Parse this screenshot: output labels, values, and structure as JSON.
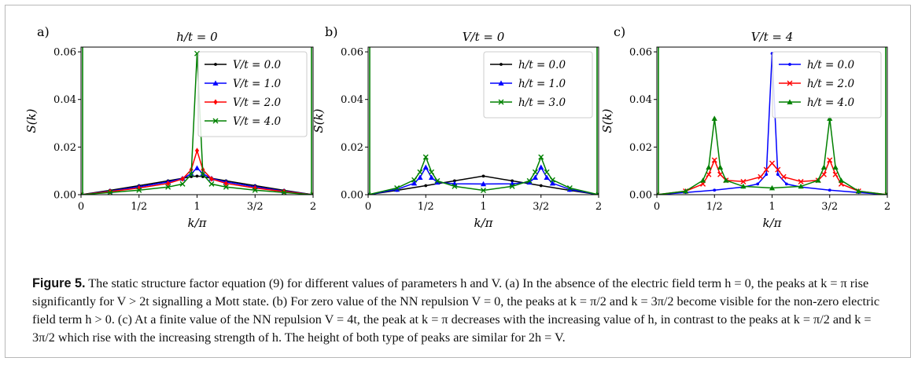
{
  "colors": {
    "black": "#000000",
    "blue": "#0000ff",
    "red": "#ff0000",
    "green": "#008000"
  },
  "chart_data": [
    {
      "type": "line",
      "panel_label": "a)",
      "title": "h/t = 0",
      "xlabel": "k/π",
      "ylabel": "S(k)",
      "xlim": [
        0,
        2
      ],
      "ylim": [
        0,
        0.062
      ],
      "xticks": [
        0,
        0.5,
        1,
        1.5,
        2
      ],
      "xticklabels": [
        "0",
        "1/2",
        "1",
        "3/2",
        "2"
      ],
      "yticks": [
        0,
        0.02,
        0.04,
        0.06
      ],
      "yticklabels": [
        "0.00",
        "0.02",
        "0.04",
        "0.06"
      ],
      "legend_position": "top-right",
      "series": [
        {
          "name": "V/t = 0.0",
          "color": "#000000",
          "marker": "dot",
          "x": [
            0,
            0.25,
            0.5,
            0.75,
            0.875,
            0.95,
            1.0,
            1.05,
            1.125,
            1.25,
            1.5,
            1.75,
            2.0
          ],
          "y": [
            0.0,
            0.0018,
            0.0038,
            0.0058,
            0.0069,
            0.0076,
            0.0078,
            0.0076,
            0.0069,
            0.0058,
            0.0038,
            0.0018,
            0.0
          ]
        },
        {
          "name": "V/t = 1.0",
          "color": "#0000ff",
          "marker": "triangle",
          "x": [
            0,
            0.25,
            0.5,
            0.75,
            0.875,
            0.95,
            1.0,
            1.05,
            1.125,
            1.25,
            1.5,
            1.75,
            2.0
          ],
          "y": [
            0.0,
            0.0015,
            0.0033,
            0.0053,
            0.0068,
            0.0088,
            0.0112,
            0.0088,
            0.0068,
            0.0053,
            0.0033,
            0.0015,
            0.0
          ]
        },
        {
          "name": "V/t = 2.0",
          "color": "#ff0000",
          "marker": "diamond",
          "x": [
            0,
            0.25,
            0.5,
            0.75,
            0.875,
            0.95,
            1.0,
            1.05,
            1.125,
            1.25,
            1.5,
            1.75,
            2.0
          ],
          "y": [
            0.0,
            0.0013,
            0.0028,
            0.0047,
            0.0066,
            0.0105,
            0.0185,
            0.0105,
            0.0066,
            0.0047,
            0.0028,
            0.0013,
            0.0
          ]
        },
        {
          "name": "V/t = 4.0",
          "color": "#008000",
          "marker": "x",
          "x": [
            0,
            0.25,
            0.5,
            0.75,
            0.875,
            0.95,
            1.0,
            1.05,
            1.125,
            1.25,
            1.5,
            1.75,
            2.0
          ],
          "y": [
            0.0,
            0.0009,
            0.0019,
            0.0032,
            0.0045,
            0.0085,
            0.0593,
            0.0085,
            0.0045,
            0.0032,
            0.0019,
            0.0009,
            0.0
          ]
        }
      ]
    },
    {
      "type": "line",
      "panel_label": "b)",
      "title": "V/t = 0",
      "xlabel": "k/π",
      "ylabel": "S(k)",
      "xlim": [
        0,
        2
      ],
      "ylim": [
        0,
        0.062
      ],
      "xticks": [
        0,
        0.5,
        1,
        1.5,
        2
      ],
      "xticklabels": [
        "0",
        "1/2",
        "1",
        "3/2",
        "2"
      ],
      "yticks": [
        0,
        0.02,
        0.04,
        0.06
      ],
      "yticklabels": [
        "0.00",
        "0.02",
        "0.04",
        "0.06"
      ],
      "legend_position": "top-right",
      "series": [
        {
          "name": "h/t = 0.0",
          "color": "#000000",
          "marker": "dot",
          "x": [
            0,
            0.25,
            0.5,
            0.75,
            1.0,
            1.25,
            1.5,
            1.75,
            2.0
          ],
          "y": [
            0.0,
            0.0018,
            0.0038,
            0.0058,
            0.0078,
            0.0058,
            0.0038,
            0.0018,
            0.0
          ]
        },
        {
          "name": "h/t = 1.0",
          "color": "#0000ff",
          "marker": "triangle",
          "x": [
            0,
            0.25,
            0.4,
            0.45,
            0.5,
            0.55,
            0.6,
            0.75,
            1.0,
            1.25,
            1.4,
            1.45,
            1.5,
            1.55,
            1.6,
            1.75,
            2.0
          ],
          "y": [
            0.0,
            0.0022,
            0.0048,
            0.0072,
            0.0115,
            0.0072,
            0.0052,
            0.0046,
            0.0045,
            0.0046,
            0.0052,
            0.0072,
            0.0115,
            0.0072,
            0.0048,
            0.0022,
            0.0
          ]
        },
        {
          "name": "h/t = 3.0",
          "color": "#008000",
          "marker": "x",
          "x": [
            0,
            0.25,
            0.4,
            0.45,
            0.5,
            0.55,
            0.6,
            0.75,
            1.0,
            1.25,
            1.4,
            1.45,
            1.5,
            1.55,
            1.6,
            1.75,
            2.0
          ],
          "y": [
            0.0,
            0.0028,
            0.0062,
            0.0095,
            0.0158,
            0.0095,
            0.0058,
            0.0035,
            0.0018,
            0.0035,
            0.0058,
            0.0095,
            0.0158,
            0.0095,
            0.0062,
            0.0028,
            0.0
          ]
        }
      ]
    },
    {
      "type": "line",
      "panel_label": "c)",
      "title": "V/t = 4",
      "xlabel": "k/π",
      "ylabel": "S(k)",
      "xlim": [
        0,
        2
      ],
      "ylim": [
        0,
        0.062
      ],
      "xticks": [
        0,
        0.5,
        1,
        1.5,
        2
      ],
      "xticklabels": [
        "0",
        "1/2",
        "1",
        "3/2",
        "2"
      ],
      "yticks": [
        0,
        0.02,
        0.04,
        0.06
      ],
      "yticklabels": [
        "0.00",
        "0.02",
        "0.04",
        "0.06"
      ],
      "legend_position": "top-right",
      "series": [
        {
          "name": "h/t = 0.0",
          "color": "#0000ff",
          "marker": "dot",
          "x": [
            0,
            0.25,
            0.5,
            0.75,
            0.875,
            0.95,
            1.0,
            1.05,
            1.125,
            1.25,
            1.5,
            1.75,
            2.0
          ],
          "y": [
            0.0,
            0.0009,
            0.0019,
            0.0032,
            0.0045,
            0.0085,
            0.0593,
            0.0085,
            0.0045,
            0.0032,
            0.0019,
            0.0009,
            0.0
          ]
        },
        {
          "name": "h/t = 2.0",
          "color": "#ff0000",
          "marker": "x",
          "x": [
            0,
            0.25,
            0.4,
            0.45,
            0.5,
            0.55,
            0.6,
            0.75,
            0.9,
            0.95,
            1.0,
            1.05,
            1.1,
            1.25,
            1.4,
            1.45,
            1.5,
            1.55,
            1.6,
            1.75,
            2.0
          ],
          "y": [
            0.0,
            0.0015,
            0.0045,
            0.0085,
            0.0145,
            0.0085,
            0.006,
            0.0055,
            0.0075,
            0.0105,
            0.0132,
            0.0105,
            0.0075,
            0.0055,
            0.006,
            0.0085,
            0.0145,
            0.0085,
            0.0045,
            0.0015,
            0.0
          ]
        },
        {
          "name": "h/t = 4.0",
          "color": "#008000",
          "marker": "triangle",
          "x": [
            0,
            0.25,
            0.4,
            0.45,
            0.5,
            0.55,
            0.6,
            0.75,
            1.0,
            1.25,
            1.4,
            1.45,
            1.5,
            1.55,
            1.6,
            1.75,
            2.0
          ],
          "y": [
            0.0,
            0.0015,
            0.006,
            0.0115,
            0.032,
            0.0115,
            0.006,
            0.0035,
            0.0028,
            0.0035,
            0.006,
            0.0115,
            0.032,
            0.0115,
            0.006,
            0.0015,
            0.0
          ]
        }
      ]
    }
  ],
  "caption": {
    "label": "Figure 5.",
    "text": "The static structure factor equation (9) for different values of parameters h and V. (a) In the absence of the electric field term h = 0, the peaks at k = π rise significantly for V > 2t signalling a Mott state. (b) For zero value of the NN repulsion V = 0, the peaks at k = π/2 and k = 3π/2 become visible for the non-zero electric field term h > 0. (c) At a finite value of the NN repulsion V = 4t, the peak at k = π decreases with the increasing value of h, in contrast to the peaks at k = π/2 and k = 3π/2 which rise with the increasing strength of h. The height of both type of peaks are similar for 2h = V."
  }
}
